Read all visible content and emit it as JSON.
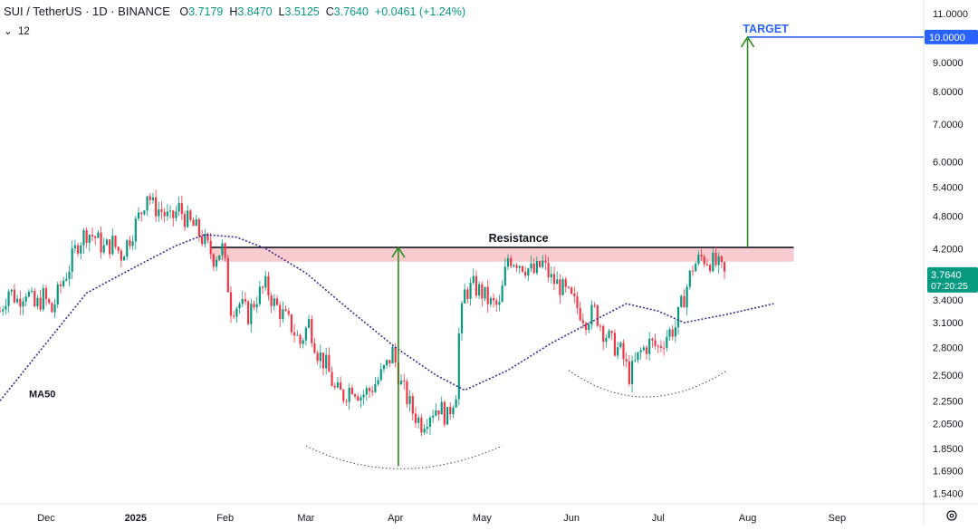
{
  "header": {
    "symbol": "SUI / TetherUS · 1D · BINANCE",
    "o_label": "O",
    "o_value": "3.7179",
    "h_label": "H",
    "h_value": "3.8470",
    "l_label": "L",
    "l_value": "3.5125",
    "c_label": "C",
    "c_value": "3.7640",
    "change": "+0.0461 (+1.24%)",
    "indicator_toggle": "⌄",
    "indicator_count": "12"
  },
  "colors": {
    "up": "#089981",
    "down": "#f23645",
    "ma": "#3b2b8f",
    "target_line": "#2962ff",
    "arrow": "#2e8b1f",
    "resistance_fill": "#f7c3c6",
    "price_badge": "#089981"
  },
  "chart_data": {
    "type": "line",
    "title": "SUI / TetherUS · 1D · BINANCE",
    "scale": "log",
    "ylim": [
      1.48,
      11.3
    ],
    "y_ticks": [
      11.0,
      10.0,
      9.0,
      8.0,
      7.0,
      6.0,
      5.4,
      4.8,
      4.2,
      3.764,
      3.4,
      3.1,
      2.8,
      2.5,
      2.25,
      2.05,
      1.85,
      1.69,
      1.54
    ],
    "y_tick_labels": [
      "11.0000",
      "10.0000",
      "9.0000",
      "8.0000",
      "7.0000",
      "6.0000",
      "5.4000",
      "4.8000",
      "4.2000",
      "3.7640",
      "3.4000",
      "3.1000",
      "2.8000",
      "2.5000",
      "2.2500",
      "2.0500",
      "1.8500",
      "1.6900",
      "1.5400"
    ],
    "x_range": [
      "2024-11-15",
      "2025-10-01"
    ],
    "x_ticks": [
      {
        "date": "2024-12-01",
        "label": "Dec"
      },
      {
        "date": "2025-01-01",
        "label": "2025"
      },
      {
        "date": "2025-02-01",
        "label": "Feb"
      },
      {
        "date": "2025-03-01",
        "label": "Mar"
      },
      {
        "date": "2025-04-01",
        "label": "Apr"
      },
      {
        "date": "2025-05-01",
        "label": "May"
      },
      {
        "date": "2025-06-01",
        "label": "Jun"
      },
      {
        "date": "2025-07-01",
        "label": "Jul"
      },
      {
        "date": "2025-08-01",
        "label": "Aug"
      },
      {
        "date": "2025-09-01",
        "label": "Sep"
      }
    ],
    "series": [
      {
        "name": "SUI / TetherUS",
        "kind": "price",
        "points": [
          [
            "2024-11-15",
            3.25
          ],
          [
            "2024-11-18",
            3.55
          ],
          [
            "2024-11-21",
            3.4
          ],
          [
            "2024-11-24",
            3.55
          ],
          [
            "2024-11-27",
            3.3
          ],
          [
            "2024-11-30",
            3.45
          ],
          [
            "2024-12-03",
            3.25
          ],
          [
            "2024-12-06",
            3.6
          ],
          [
            "2024-12-09",
            3.9
          ],
          [
            "2024-12-12",
            4.3
          ],
          [
            "2024-12-15",
            4.5
          ],
          [
            "2024-12-18",
            4.4
          ],
          [
            "2024-12-21",
            4.2
          ],
          [
            "2024-12-24",
            4.3
          ],
          [
            "2024-12-27",
            4.1
          ],
          [
            "2024-12-30",
            4.4
          ],
          [
            "2025-01-03",
            4.9
          ],
          [
            "2025-01-05",
            5.3
          ],
          [
            "2025-01-07",
            5.0
          ],
          [
            "2025-01-10",
            4.9
          ],
          [
            "2025-01-13",
            4.7
          ],
          [
            "2025-01-16",
            4.95
          ],
          [
            "2025-01-19",
            4.7
          ],
          [
            "2025-01-22",
            4.55
          ],
          [
            "2025-01-25",
            4.3
          ],
          [
            "2025-01-28",
            4.05
          ],
          [
            "2025-01-31",
            4.2
          ],
          [
            "2025-02-03",
            3.3
          ],
          [
            "2025-02-06",
            3.35
          ],
          [
            "2025-02-09",
            3.2
          ],
          [
            "2025-02-12",
            3.45
          ],
          [
            "2025-02-15",
            3.6
          ],
          [
            "2025-02-18",
            3.35
          ],
          [
            "2025-02-21",
            3.2
          ],
          [
            "2025-02-24",
            3.05
          ],
          [
            "2025-02-27",
            2.85
          ],
          [
            "2025-03-02",
            3.1
          ],
          [
            "2025-03-05",
            2.75
          ],
          [
            "2025-03-08",
            2.6
          ],
          [
            "2025-03-11",
            2.35
          ],
          [
            "2025-03-14",
            2.3
          ],
          [
            "2025-03-17",
            2.4
          ],
          [
            "2025-03-20",
            2.3
          ],
          [
            "2025-03-23",
            2.35
          ],
          [
            "2025-03-26",
            2.45
          ],
          [
            "2025-03-29",
            2.6
          ],
          [
            "2025-03-31",
            2.75
          ],
          [
            "2025-04-03",
            2.4
          ],
          [
            "2025-04-07",
            2.15
          ],
          [
            "2025-04-10",
            2.05
          ],
          [
            "2025-04-13",
            2.15
          ],
          [
            "2025-04-16",
            2.2
          ],
          [
            "2025-04-19",
            2.1
          ],
          [
            "2025-04-22",
            2.35
          ],
          [
            "2025-04-23",
            2.95
          ],
          [
            "2025-04-25",
            3.5
          ],
          [
            "2025-04-28",
            3.6
          ],
          [
            "2025-05-01",
            3.5
          ],
          [
            "2025-05-04",
            3.35
          ],
          [
            "2025-05-07",
            3.3
          ],
          [
            "2025-05-10",
            4.05
          ],
          [
            "2025-05-13",
            4.0
          ],
          [
            "2025-05-16",
            3.9
          ],
          [
            "2025-05-19",
            3.8
          ],
          [
            "2025-05-22",
            3.95
          ],
          [
            "2025-05-25",
            3.7
          ],
          [
            "2025-05-28",
            3.6
          ],
          [
            "2025-05-31",
            3.45
          ],
          [
            "2025-06-03",
            3.3
          ],
          [
            "2025-06-06",
            3.15
          ],
          [
            "2025-06-09",
            3.25
          ],
          [
            "2025-06-12",
            3.0
          ],
          [
            "2025-06-15",
            2.85
          ],
          [
            "2025-06-18",
            2.75
          ],
          [
            "2025-06-21",
            2.5
          ],
          [
            "2025-06-22",
            2.55
          ],
          [
            "2025-06-25",
            2.75
          ],
          [
            "2025-06-28",
            2.85
          ],
          [
            "2025-07-01",
            2.8
          ],
          [
            "2025-07-04",
            2.95
          ],
          [
            "2025-07-07",
            3.05
          ],
          [
            "2025-07-10",
            3.45
          ],
          [
            "2025-07-13",
            3.9
          ],
          [
            "2025-07-16",
            4.05
          ],
          [
            "2025-07-19",
            4.0
          ],
          [
            "2025-07-22",
            3.9
          ],
          [
            "2025-07-24",
            3.764
          ]
        ]
      },
      {
        "name": "MA50",
        "kind": "ma",
        "points": [
          [
            "2024-11-15",
            2.25
          ],
          [
            "2024-12-01",
            2.85
          ],
          [
            "2024-12-15",
            3.5
          ],
          [
            "2025-01-01",
            3.9
          ],
          [
            "2025-01-15",
            4.25
          ],
          [
            "2025-01-25",
            4.45
          ],
          [
            "2025-02-05",
            4.4
          ],
          [
            "2025-02-15",
            4.2
          ],
          [
            "2025-03-01",
            3.8
          ],
          [
            "2025-03-15",
            3.3
          ],
          [
            "2025-04-01",
            2.8
          ],
          [
            "2025-04-15",
            2.5
          ],
          [
            "2025-04-25",
            2.35
          ],
          [
            "2025-05-10",
            2.55
          ],
          [
            "2025-05-25",
            2.85
          ],
          [
            "2025-06-10",
            3.15
          ],
          [
            "2025-06-20",
            3.35
          ],
          [
            "2025-07-01",
            3.25
          ],
          [
            "2025-07-10",
            3.1
          ],
          [
            "2025-07-24",
            3.2
          ],
          [
            "2025-08-10",
            3.35
          ]
        ]
      }
    ],
    "annotations": {
      "resistance": {
        "label": "Resistance",
        "price": 4.22,
        "zone": [
          3.98,
          4.22
        ],
        "from": "2025-01-27",
        "to": "2025-08-17"
      },
      "target": {
        "label": "TARGET",
        "price": 10.0,
        "from": "2025-08-01",
        "axis_label": "10.0000"
      },
      "arrows": [
        {
          "date": "2025-04-02",
          "from_price": 1.72,
          "to_price": 4.22
        },
        {
          "date": "2025-08-01",
          "from_price": 4.22,
          "to_price": 10.0
        }
      ],
      "ma_label": "MA50",
      "last_price": "3.7640",
      "countdown": "07:20:25"
    }
  }
}
